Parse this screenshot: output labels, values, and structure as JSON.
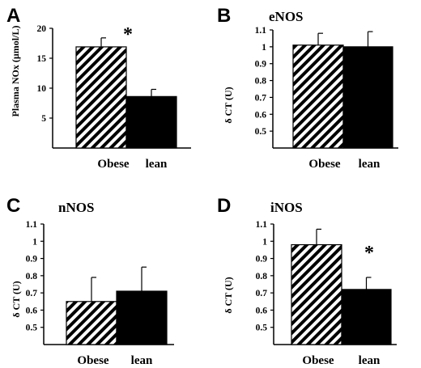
{
  "chart_data": [
    {
      "type": "bar",
      "panel_label": "A",
      "title": "",
      "ylabel": "Plasma NOx (µmol/L)",
      "ylim": [
        0,
        20
      ],
      "yticks": [
        "20",
        "15",
        "10",
        "5"
      ],
      "categories": [
        "Obese",
        "lean"
      ],
      "values": [
        16.9,
        8.6
      ],
      "errors": [
        1.5,
        1.2
      ],
      "fills": [
        "hatched",
        "solid"
      ],
      "annotation": "*"
    },
    {
      "type": "bar",
      "panel_label": "B",
      "title": "eNOS",
      "ylabel": "δ CT (U)",
      "ylim": [
        0.4,
        1.1
      ],
      "yticks": [
        "1.1",
        "1",
        "0.9",
        "0.8",
        "0.7",
        "0.6",
        "0.5"
      ],
      "categories": [
        "Obese",
        "lean"
      ],
      "values": [
        1.01,
        1.0
      ],
      "errors": [
        0.07,
        0.09
      ],
      "fills": [
        "hatched",
        "solid"
      ],
      "annotation": ""
    },
    {
      "type": "bar",
      "panel_label": "C",
      "title": "nNOS",
      "ylabel": "δ CT (U)",
      "ylim": [
        0.4,
        1.1
      ],
      "yticks": [
        "1.1",
        "1",
        "0.9",
        "0.8",
        "0.7",
        "0.6",
        "0.5"
      ],
      "categories": [
        "Obese",
        "lean"
      ],
      "values": [
        0.65,
        0.71
      ],
      "errors": [
        0.14,
        0.14
      ],
      "fills": [
        "hatched",
        "solid"
      ],
      "annotation": ""
    },
    {
      "type": "bar",
      "panel_label": "D",
      "title": "iNOS",
      "ylabel": "δ CT (U)",
      "ylim": [
        0.4,
        1.1
      ],
      "yticks": [
        "1.1",
        "1",
        "0.9",
        "0.8",
        "0.7",
        "0.6",
        "0.5"
      ],
      "categories": [
        "Obese",
        "lean"
      ],
      "values": [
        0.98,
        0.72
      ],
      "errors": [
        0.09,
        0.07
      ],
      "fills": [
        "hatched",
        "solid"
      ],
      "annotation": "*"
    }
  ]
}
